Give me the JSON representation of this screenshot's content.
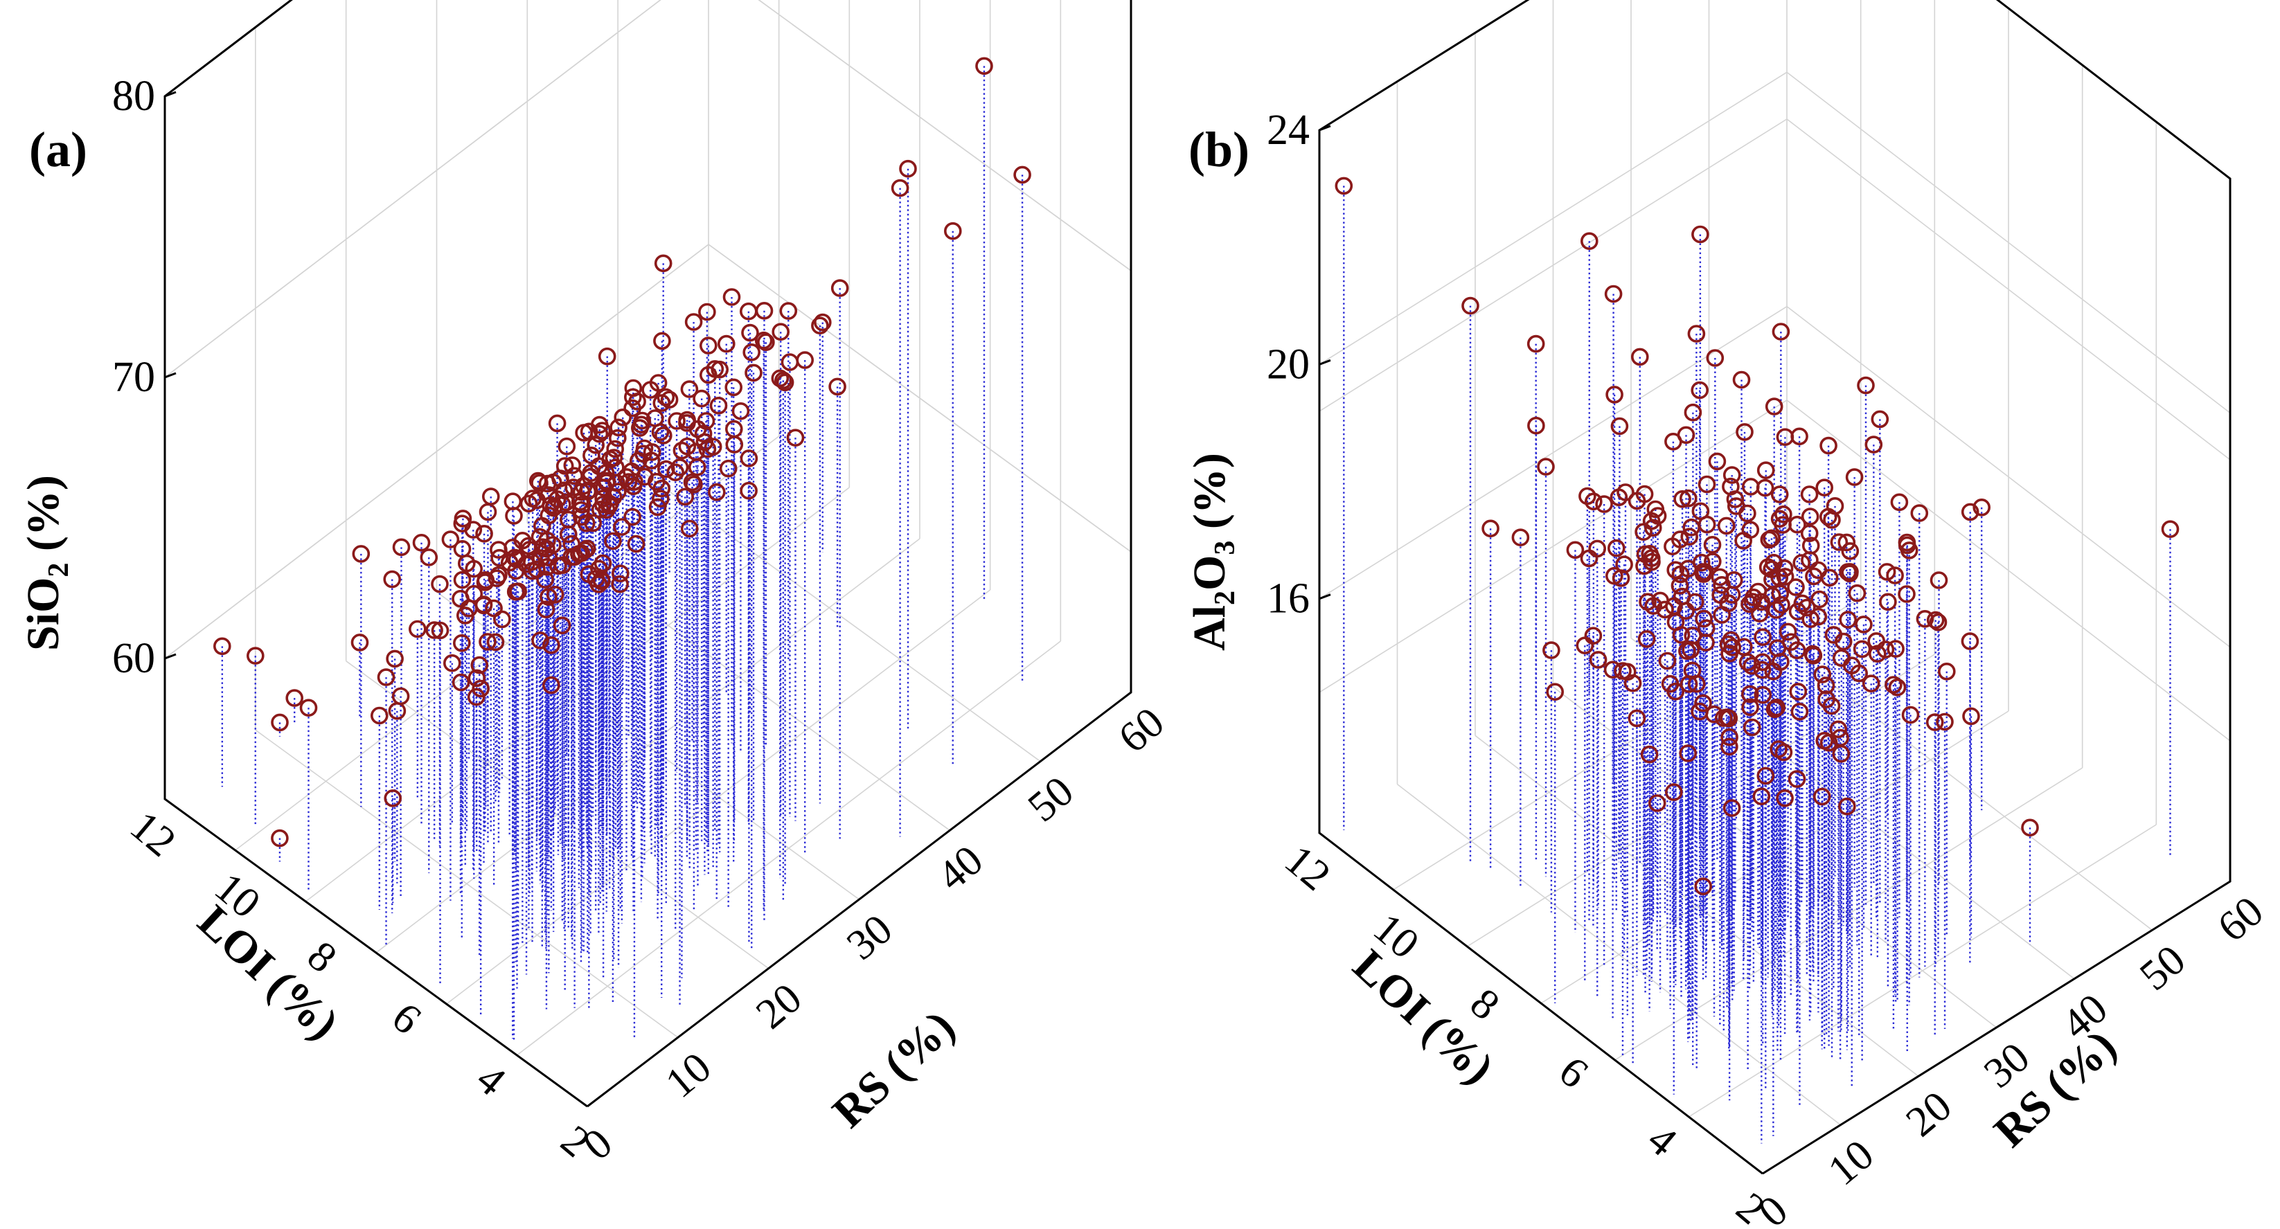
{
  "colors": {
    "marker": "#8b1a1a",
    "stem": "#2b2bd6",
    "axis": "#000000",
    "grid": "#d4d4d4"
  },
  "chart_data": [
    {
      "panel": "(a)",
      "type": "scatter3d",
      "style": "circle markers with dotted drop lines to the floor",
      "zlabel": "SiO2 (%)",
      "zlabel_parts": {
        "main": "SiO",
        "sub": "2",
        "unit": " (%)"
      },
      "ylabel": "LOI (%)",
      "xlabel": "RS (%)",
      "x_range": [
        0,
        60
      ],
      "y_range": [
        2,
        12
      ],
      "z_range": [
        55,
        80
      ],
      "x_ticks": [
        0,
        10,
        20,
        30,
        40,
        50,
        60
      ],
      "y_ticks": [
        2,
        4,
        6,
        8,
        10,
        12
      ],
      "z_ticks": [
        60,
        70,
        80
      ],
      "n_points": 260,
      "trend": "SiO2 decreases as LOI increases; points cluster at RS 5–35, LOI 3–9",
      "points_sample": [
        {
          "x": 4,
          "y": 11.5,
          "z": 60
        },
        {
          "x": 3,
          "y": 10.5,
          "z": 61
        },
        {
          "x": 10,
          "y": 9.5,
          "z": 64
        },
        {
          "x": 12,
          "y": 8.5,
          "z": 65
        },
        {
          "x": 15,
          "y": 7.5,
          "z": 67
        },
        {
          "x": 18,
          "y": 6.5,
          "z": 68
        },
        {
          "x": 22,
          "y": 6,
          "z": 69
        },
        {
          "x": 25,
          "y": 5,
          "z": 70
        },
        {
          "x": 30,
          "y": 4.5,
          "z": 71
        },
        {
          "x": 35,
          "y": 4,
          "z": 72
        },
        {
          "x": 45,
          "y": 3,
          "z": 74
        },
        {
          "x": 55,
          "y": 3.5,
          "z": 73
        }
      ]
    },
    {
      "panel": "(b)",
      "type": "scatter3d",
      "style": "circle markers with dotted drop lines to the floor",
      "zlabel": "Al2O3 (%)",
      "zlabel_parts": {
        "a": "Al",
        "sub1": "2",
        "b": "O",
        "sub2": "3",
        "unit": " (%)"
      },
      "ylabel": "LOI (%)",
      "xlabel": "RS (%)",
      "x_range": [
        0,
        60
      ],
      "y_range": [
        2,
        12
      ],
      "z_range": [
        12,
        24
      ],
      "x_ticks": [
        0,
        10,
        20,
        30,
        40,
        50,
        60
      ],
      "y_ticks": [
        2,
        4,
        6,
        8,
        10,
        12
      ],
      "z_ticks": [
        16,
        20,
        24
      ],
      "n_points": 260,
      "trend": "Al2O3 mostly between 16 and 20 %, no strong dependence on LOI or RS",
      "points_sample": [
        {
          "x": 2,
          "y": 11.8,
          "z": 23
        },
        {
          "x": 8,
          "y": 10,
          "z": 21.5
        },
        {
          "x": 12,
          "y": 9,
          "z": 19
        },
        {
          "x": 18,
          "y": 8,
          "z": 18.5
        },
        {
          "x": 22,
          "y": 7,
          "z": 18
        },
        {
          "x": 25,
          "y": 6,
          "z": 17.5
        },
        {
          "x": 28,
          "y": 5,
          "z": 18.2
        },
        {
          "x": 30,
          "y": 4.5,
          "z": 17
        },
        {
          "x": 35,
          "y": 4,
          "z": 16.5
        },
        {
          "x": 40,
          "y": 3,
          "z": 14
        },
        {
          "x": 58,
          "y": 3,
          "z": 17.6
        }
      ]
    }
  ]
}
